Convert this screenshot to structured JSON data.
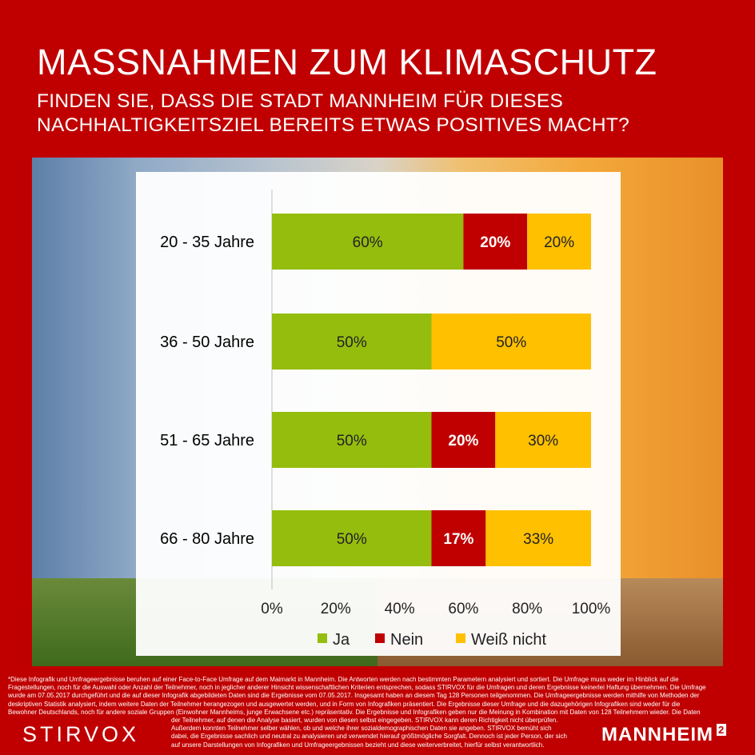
{
  "header": {
    "title": "MASSNAHMEN ZUM KLIMASCHUTZ",
    "subtitle_line1": "FINDEN SIE, DASS DIE STADT MANNHEIM FÜR DIESES",
    "subtitle_line2": "NACHHALTIGKEITSZIEL BEREITS ETWAS POSITIVES MACHT?"
  },
  "colors": {
    "ja": "#95bd0e",
    "nein": "#c00000",
    "weiss_nicht": "#ffc000",
    "brand": "#c00000"
  },
  "chart_data": {
    "type": "bar",
    "orientation": "horizontal",
    "stacked": true,
    "categories": [
      "20 - 35 Jahre",
      "36 - 50 Jahre",
      "51 - 65 Jahre",
      "66 - 80 Jahre"
    ],
    "series": [
      {
        "name": "Ja",
        "values": [
          60,
          50,
          50,
          50
        ],
        "labels": [
          "60%",
          "50%",
          "50%",
          "50%"
        ]
      },
      {
        "name": "Nein",
        "values": [
          20,
          0,
          20,
          17
        ],
        "labels": [
          "20%",
          "",
          "20%",
          "17%"
        ]
      },
      {
        "name": "Weiß nicht",
        "values": [
          20,
          50,
          30,
          33
        ],
        "labels": [
          "20%",
          "50%",
          "30%",
          "33%"
        ]
      }
    ],
    "xlim": [
      0,
      100
    ],
    "xticks": [
      "0%",
      "20%",
      "40%",
      "60%",
      "80%",
      "100%"
    ],
    "legend": "bottom",
    "grid": false
  },
  "footnote": {
    "lines": [
      "*Diese Infografik und Umfrageergebnisse beruhen auf einer Face-to-Face Umfrage auf dem Maimarkt in Mannheim. Die Antworten werden nach bestimmten Parametern analysiert und sortiert. Die Umfrage muss weder im Hinblick auf die",
      "Fragestellungen, noch für die Auswahl oder Anzahl der Teilnehmer, noch in jeglicher anderer Hinsicht wissenschaftlichen Kriterien entsprechen, sodass STIRVOX für die Umfragen und deren Ergebnisse keinerlei Haftung übernehmen. Die Umfrage",
      "wurde am 07.05.2017 durchgeführt und die auf dieser Infografik abgebildeten Daten sind die Ergebnisse vom 07.05.2017. Insgesamt haben an diesem Tag 128 Personen teilgenommen. Die Umfrageergebnisse werden mithilfe von Methoden der",
      "deskriptiven Statistik analysiert, indem weitere Daten der Teilnehmer herangezogen und ausgewertet werden, und in Form von Infografiken präsentiert. Die Ergebnisse dieser Umfrage und die dazugehörigen Infografiken sind weder für die",
      "Bewohner Deutschlands, noch für andere soziale Gruppen (Einwohner Mannheims, junge Erwachsene etc.) repräsentativ. Die Ergebnisse und Infografiken geben nur die Meinung in Kombination mit Daten von 128 Teilnehmern wieder. Die Daten",
      "der Teilnehmer, auf denen die Analyse basiert, wurden von diesen selbst eingegeben. STIRVOX kann deren Richtigkeit nicht überprüfen.",
      "Außerdem konnten Teilnehmer selber wählen, ob und welche ihrer sozialdemographischen Daten sie angeben. STIRVOX bemüht sich",
      "dabei, die Ergebnisse sachlich und neutral zu analysieren und verwendet hierauf größtmögliche Sorgfalt. Dennoch ist jeder Person, der sich",
      "auf unsere Darstellungen von Infografiken und Umfrageergebnissen bezieht und diese weiterverbreitet, hierfür selbst verantwortlich."
    ]
  },
  "brands": {
    "left": "STIRVOX",
    "right": "MANNHEIM",
    "right_sup": "2"
  }
}
